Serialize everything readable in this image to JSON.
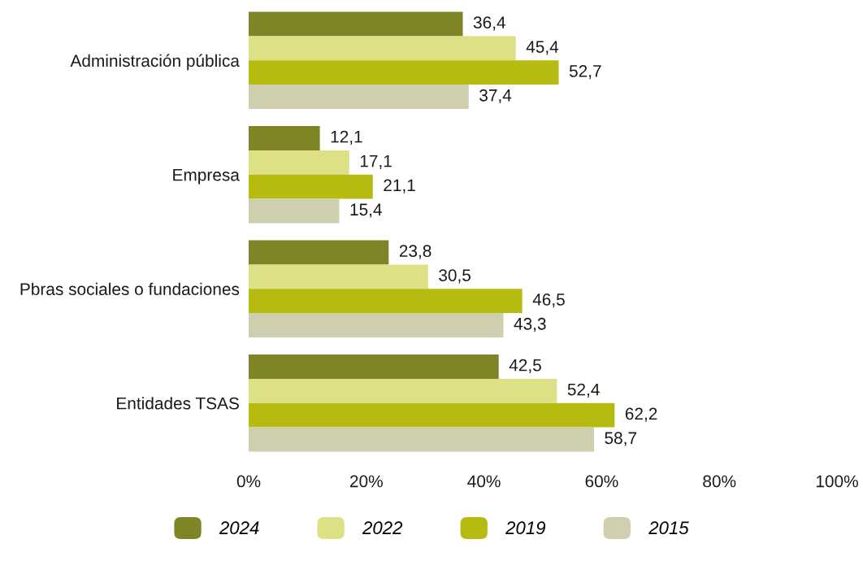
{
  "chart_data": {
    "type": "bar",
    "orientation": "horizontal",
    "categories": [
      "Administración pública",
      "Empresa",
      "Pbras sociales o fundaciones",
      "Entidades TSAS"
    ],
    "series": [
      {
        "name": "2024",
        "color": "#7f8426",
        "values": [
          36.4,
          12.1,
          23.8,
          42.5
        ],
        "value_labels": [
          "36,4",
          "12,1",
          "23,8",
          "42,5"
        ]
      },
      {
        "name": "2022",
        "color": "#dde084",
        "values": [
          45.4,
          17.1,
          30.5,
          52.4
        ],
        "value_labels": [
          "45,4",
          "17,1",
          "30,5",
          "52,4"
        ]
      },
      {
        "name": "2019",
        "color": "#b5bb11",
        "values": [
          52.7,
          21.1,
          46.5,
          62.2
        ],
        "value_labels": [
          "52,7",
          "21,1",
          "46,5",
          "62,2"
        ]
      },
      {
        "name": "2015",
        "color": "#cfcfb0",
        "values": [
          37.4,
          15.4,
          43.3,
          58.7
        ],
        "value_labels": [
          "37,4",
          "15,4",
          "43,3",
          "58,7"
        ]
      }
    ],
    "xlim": [
      0,
      100
    ],
    "xticks": [
      {
        "value": 0,
        "label": "0%"
      },
      {
        "value": 20,
        "label": "20%"
      },
      {
        "value": 40,
        "label": "40%"
      },
      {
        "value": 60,
        "label": "60%"
      },
      {
        "value": 80,
        "label": "80%"
      },
      {
        "value": 100,
        "label": "100%"
      }
    ],
    "legend": "bottom"
  }
}
